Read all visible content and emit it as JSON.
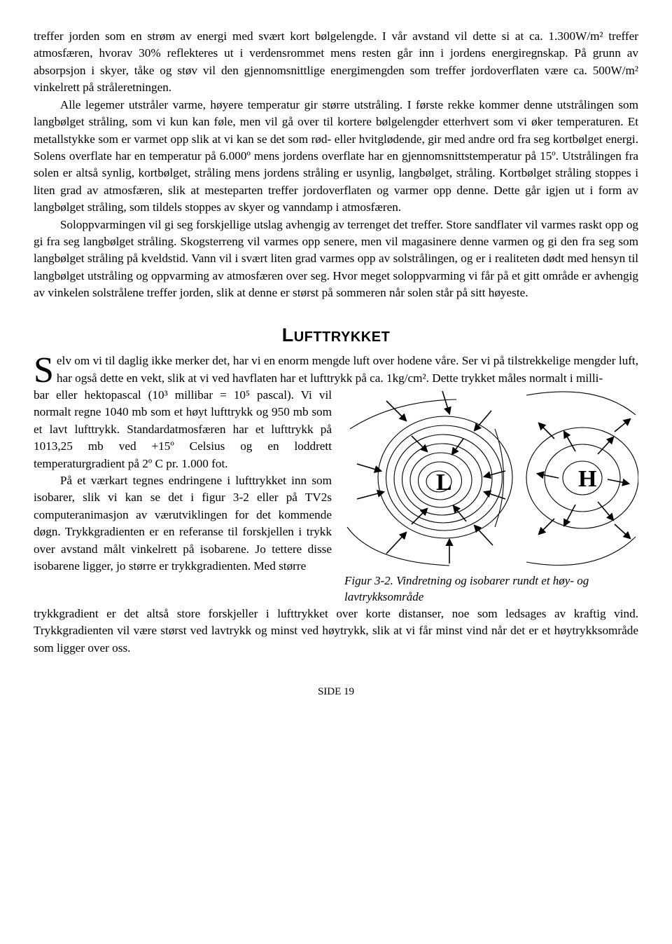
{
  "paragraphs": {
    "p1": "treffer jorden som en strøm av energi med svært kort bølgelengde. I vår avstand vil dette si at ca. 1.300W/m² treffer atmosfæren, hvorav 30% reflekteres ut i verdensrommet mens resten går inn i jordens energiregnskap. På grunn av absorpsjon i skyer, tåke og støv vil den gjennomsnittlige energimengden som treffer jordoverflaten være ca. 500W/m² vinkelrett på stråleretningen.",
    "p2": "Alle legemer utstråler varme, høyere temperatur gir større utstråling. I første rekke kommer denne utstrålingen som langbølget stråling, som vi kun kan føle, men vil gå over til kortere bølgelengder etterhvert som vi øker temperaturen. Et metallstykke som er varmet opp slik at vi kan se det som rød- eller hvitglødende, gir med andre ord fra seg kortbølget energi. Solens overflate har en temperatur på 6.000º mens jordens overflate har en gjennomsnittstemperatur på 15º. Utstrålingen fra solen er altså synlig, kortbølget, stråling mens jordens stråling er usynlig, langbølget, stråling. Kortbølget stråling stoppes i liten grad av atmosfæren, slik at mesteparten treffer jordoverflaten og varmer opp denne. Dette går igjen ut i form av langbølget stråling, som tildels stoppes av skyer og vanndamp i atmosfæren.",
    "p3": "Soloppvarmingen vil gi seg forskjellige utslag avhengig av terrenget det treffer. Store sandflater vil varmes raskt opp og gi fra seg langbølget stråling. Skogsterreng vil varmes opp senere, men vil magasinere denne varmen og gi den fra seg som langbølget stråling på kveldstid. Vann vil i svært liten grad varmes opp av solstrålingen, og er i realiteten dødt med hensyn til langbølget utstråling og oppvarming av atmosfæren over seg. Hvor meget soloppvarming vi får på et gitt område er avhengig av vinkelen solstrålene treffer jorden, slik at denne er størst på sommeren når solen står på sitt høyeste."
  },
  "heading": {
    "cap": "L",
    "rest": "UFTTRYKKET"
  },
  "section2": {
    "p1_start_cap": "S",
    "p1_start": "elv om vi til daglig ikke merker det, har vi en enorm mengde luft over hodene våre. Ser vi på tilstrekkelige mengder luft, har også dette en vekt, slik at vi ved havflaten har et lufttrykk på ca. 1kg/cm². Dette trykket måles normalt i milli-",
    "left1": "bar eller hektopascal (10³ millibar = 10⁵ pascal). Vi vil normalt regne 1040 mb som et høyt lufttrykk og 950 mb som et lavt lufttrykk. Standardatmosfæren har et lufttrykk på 1013,25 mb ved +15º Celsius og en loddrett temperaturgradient på 2º C pr. 1.000 fot.",
    "left2": "På et værkart tegnes endringene i lufttrykket inn som isobarer, slik vi kan se det i figur 3-2 eller på TV2s computeranimasjon av værutviklingen for det kommende døgn. Trykkgradienten er en referanse til forskjellen i trykk over avstand målt vinkelrett på isobarene. Jo tettere disse isobarene ligger, jo større er trykkgradienten. Med større",
    "figcaption": "Figur 3-2. Vindretning og isobarer rundt et høy- og lavtrykksområde",
    "p_after": "trykkgradient er det altså store forskjeller i lufttrykket over korte distanser, noe som ledsages av kraftig vind. Trykkgradienten vil være størst ved lavtrykk og minst ved høytrykk, slik at vi får minst vind når det er et høytrykksområde som ligger over oss."
  },
  "figure": {
    "L_label": "L",
    "H_label": "H",
    "stroke": "#000000",
    "ring_counts": {
      "L": 7,
      "H": 3
    },
    "font_family": "Georgia, serif",
    "label_fontsize": 34
  },
  "footer": "SIDE 19"
}
